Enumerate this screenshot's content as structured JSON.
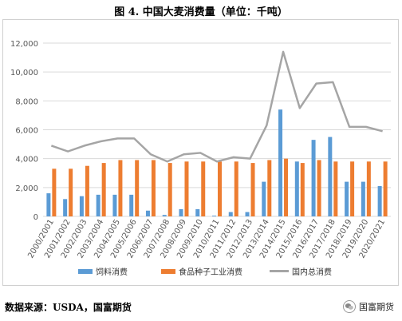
{
  "title": "图 4. 中国大麦消费量（单位：千吨）",
  "source": "数据来源：USDA，国富期货",
  "brand": {
    "name": "国富期货"
  },
  "colors": {
    "feed": "#5b9bd5",
    "food": "#ed7d31",
    "total": "#a5a5a5",
    "grid": "#d9d9d9",
    "axis_text": "#595959"
  },
  "chart_data": {
    "type": "bar",
    "categories": [
      "2000/2001",
      "2001/2002",
      "2002/2003",
      "2003/2004",
      "2004/2005",
      "2005/2006",
      "2006/2007",
      "2007/2008",
      "2008/2009",
      "2009/2010",
      "2010/2011",
      "2011/2012",
      "2012/2013",
      "2013/2014",
      "2014/2015",
      "2015/2016",
      "2016/2017",
      "2017/2018",
      "2018/2019",
      "2019/2020",
      "2020/2021"
    ],
    "ylim": [
      0,
      12000
    ],
    "yticks": [
      "0",
      "2,000",
      "4,000",
      "6,000",
      "8,000",
      "10,000",
      "12,000"
    ],
    "grid": true,
    "legend_position": "bottom",
    "series": [
      {
        "name": "饲料消费",
        "type": "bar",
        "color": "#5b9bd5",
        "values": [
          1600,
          1200,
          1400,
          1500,
          1500,
          1500,
          400,
          100,
          500,
          500,
          50,
          300,
          300,
          2400,
          7400,
          3800,
          5300,
          5500,
          2400,
          2400,
          2100
        ]
      },
      {
        "name": "食品种子工业消费",
        "type": "bar",
        "color": "#ed7d31",
        "values": [
          3300,
          3300,
          3500,
          3700,
          3900,
          3900,
          3900,
          3700,
          3800,
          3800,
          3800,
          3800,
          3700,
          3900,
          4000,
          3700,
          3900,
          3800,
          3800,
          3800,
          3800
        ]
      },
      {
        "name": "国内总消费",
        "type": "line",
        "color": "#a5a5a5",
        "values": [
          4900,
          4500,
          4900,
          5200,
          5400,
          5400,
          4300,
          3800,
          4300,
          4400,
          3800,
          4100,
          4000,
          6300,
          11400,
          7500,
          9200,
          9300,
          6200,
          6200,
          5900
        ]
      }
    ]
  }
}
